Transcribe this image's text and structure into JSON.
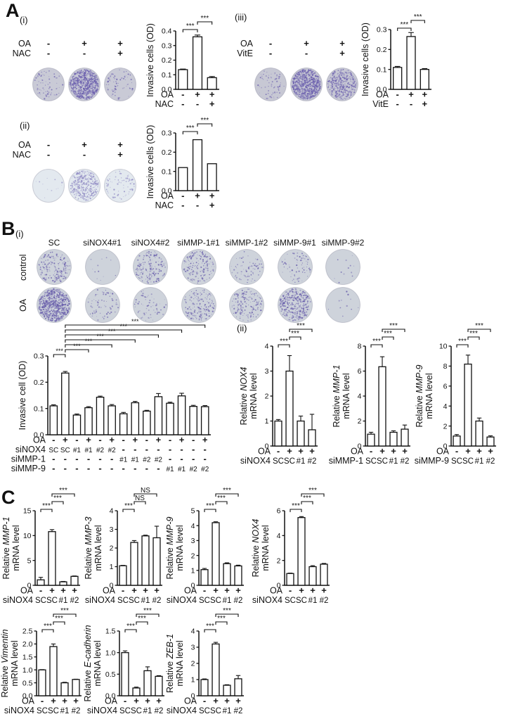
{
  "panels": {
    "A": {
      "label": "A",
      "subpanels": [
        {
          "id": "a_i",
          "tag": "(i)",
          "cond_rows": [
            {
              "label": "OA",
              "signs": [
                "-",
                "+",
                "+"
              ]
            },
            {
              "label": "NAC",
              "signs": [
                "-",
                "-",
                "+"
              ]
            }
          ],
          "well_base": "#c9cad6",
          "well_dot": "#6b5fae",
          "wells": [
            {
              "density": 1
            },
            {
              "density": 4
            },
            {
              "density": 1
            }
          ]
        },
        {
          "id": "a_ii",
          "tag": "(ii)",
          "cond_rows": [
            {
              "label": "OA",
              "signs": [
                "-",
                "+",
                "+"
              ]
            },
            {
              "label": "NAC",
              "signs": [
                "-",
                "-",
                "+"
              ]
            }
          ],
          "well_base": "#e3e9ef",
          "well_dot": "#8d87c2",
          "wells": [
            {
              "density": 0
            },
            {
              "density": 3
            },
            {
              "density": 1
            }
          ]
        },
        {
          "id": "a_iii",
          "tag": "(iii)",
          "cond_rows": [
            {
              "label": "OA",
              "signs": [
                "-",
                "+",
                "+"
              ]
            },
            {
              "label": "VitE",
              "signs": [
                "-",
                "-",
                "+"
              ]
            }
          ],
          "well_base": "#c7c8d4",
          "well_dot": "#6b5fae",
          "wells": [
            {
              "density": 1
            },
            {
              "density": 4
            },
            {
              "density": 3
            }
          ]
        }
      ]
    },
    "B": {
      "label": "B",
      "i_tag": "(i)",
      "ii_tag": "(ii)",
      "wells_grid": {
        "col_headers": [
          "SC",
          "siNOX4#1",
          "siNOX4#2",
          "siMMP-1#1",
          "siMMP-1#2",
          "siMMP-9#1",
          "siMMP-9#2"
        ],
        "row_labels": [
          "control",
          "OA"
        ],
        "well_base": "#ced3db",
        "well_dot": "#675caa",
        "rows": [
          [
            2,
            0,
            2,
            2,
            1,
            1,
            0
          ],
          [
            4,
            1,
            1,
            2,
            2,
            3,
            0
          ]
        ]
      }
    },
    "C": {
      "label": "C"
    }
  },
  "chart_data": [
    {
      "id": "a_i",
      "type": "bar",
      "ylabel": {
        "text": "Invasive cells (OD)"
      },
      "ylim": [
        0,
        0.4
      ],
      "ticks": [
        "0.0",
        "0.1",
        "0.2",
        "0.3",
        "0.4"
      ],
      "values": [
        0.135,
        0.36,
        0.08
      ],
      "errors": [
        0.004,
        0.012,
        0.008
      ],
      "xrows": [
        {
          "label": "OA",
          "values": [
            "-",
            "+",
            "+"
          ]
        },
        {
          "label": "NAC",
          "values": [
            "-",
            "-",
            "+"
          ]
        }
      ],
      "sig": [
        {
          "a": 0,
          "b": 1,
          "text": "***"
        },
        {
          "a": 1,
          "b": 2,
          "text": "***"
        }
      ]
    },
    {
      "id": "a_ii",
      "type": "bar",
      "ylabel": {
        "text": "Invasive cells (OD)"
      },
      "ylim": [
        0,
        0.3
      ],
      "ticks": [
        "0.0",
        "0.1",
        "0.2",
        "0.3"
      ],
      "values": [
        0.12,
        0.265,
        0.14
      ],
      "errors": [
        0,
        0,
        0
      ],
      "xrows": [
        {
          "label": "OA",
          "values": [
            "-",
            "+",
            "+"
          ]
        },
        {
          "label": "NAC",
          "values": [
            "-",
            "-",
            "+"
          ]
        }
      ],
      "sig": [
        {
          "a": 0,
          "b": 1,
          "text": "***"
        },
        {
          "a": 1,
          "b": 2,
          "text": "***"
        }
      ]
    },
    {
      "id": "a_iii",
      "type": "bar",
      "ylabel": {
        "text": "Invasive cells (OD)"
      },
      "ylim": [
        0,
        0.3
      ],
      "ticks": [
        "0.0",
        "0.1",
        "0.2",
        "0.3"
      ],
      "values": [
        0.11,
        0.265,
        0.1
      ],
      "errors": [
        0.005,
        0.02,
        0.004
      ],
      "xrows": [
        {
          "label": "OA",
          "values": [
            "-",
            "+",
            "+"
          ]
        },
        {
          "label": "VitE",
          "values": [
            "-",
            "-",
            "+"
          ]
        }
      ],
      "sig": [
        {
          "a": 0,
          "b": 1,
          "text": "***"
        },
        {
          "a": 1,
          "b": 2,
          "text": "***"
        }
      ]
    },
    {
      "id": "b_inv",
      "type": "bar",
      "ylabel": {
        "text": "Invasive cell (OD)"
      },
      "ylim": [
        0,
        0.3
      ],
      "ticks": [
        "0.0",
        "0.1",
        "0.2",
        "0.3"
      ],
      "values": [
        0.11,
        0.235,
        0.075,
        0.103,
        0.143,
        0.11,
        0.08,
        0.122,
        0.09,
        0.145,
        0.12,
        0.148,
        0.108,
        0.107
      ],
      "errors": [
        0.004,
        0.006,
        0.004,
        0.004,
        0.004,
        0.005,
        0.005,
        0.005,
        0.003,
        0.012,
        0.004,
        0.01,
        0.004,
        0.004
      ],
      "xrows": [
        {
          "label": "OA",
          "values": [
            "-",
            "+",
            "-",
            "+",
            "-",
            "+",
            "-",
            "+",
            "-",
            "+",
            "-",
            "+",
            "-",
            "+"
          ]
        },
        {
          "label": "siNOX4",
          "values": [
            "SC",
            "SC",
            "#1",
            "#1",
            "#2",
            "#2",
            "-",
            "-",
            "-",
            "-",
            "-",
            "-",
            "-",
            "-"
          ]
        },
        {
          "label": "siMMP-1",
          "values": [
            "-",
            "-",
            "-",
            "-",
            "-",
            "-",
            "#1",
            "#1",
            "#2",
            "#2",
            "-",
            "-",
            "-",
            "-"
          ]
        },
        {
          "label": "siMMP-9",
          "values": [
            "-",
            "-",
            "-",
            "-",
            "-",
            "-",
            "-",
            "-",
            "-",
            "-",
            "#1",
            "#1",
            "#2",
            "#2"
          ]
        }
      ],
      "sig": [
        {
          "a": 0,
          "b": 1,
          "text": "***"
        },
        {
          "a": 1,
          "b": 3,
          "text": "***"
        },
        {
          "a": 1,
          "b": 5,
          "text": "***"
        },
        {
          "a": 1,
          "b": 7,
          "text": "***"
        },
        {
          "a": 1,
          "b": 9,
          "text": "***"
        },
        {
          "a": 1,
          "b": 11,
          "text": "***"
        },
        {
          "a": 1,
          "b": 13,
          "text": "***"
        }
      ]
    },
    {
      "id": "b_nox4",
      "type": "bar",
      "ylabel": {
        "prefix": "Relative ",
        "gene": "NOX4",
        "line2": "mRNA level"
      },
      "ylim": [
        0,
        4
      ],
      "ticks": [
        "0",
        "1",
        "2",
        "3",
        "4"
      ],
      "values": [
        1.0,
        3.0,
        1.0,
        0.65
      ],
      "errors": [
        0.06,
        0.62,
        0.2,
        0.62
      ],
      "xrows": [
        {
          "label": "OA",
          "values": [
            "-",
            "+",
            "+",
            "+"
          ]
        },
        {
          "label": "siNOX4",
          "values": [
            "SC",
            "SC",
            "#1",
            "#2"
          ]
        }
      ],
      "sig": [
        {
          "a": 0,
          "b": 1,
          "text": "***"
        },
        {
          "a": 1,
          "b": 2,
          "text": "***"
        },
        {
          "a": 1,
          "b": 3,
          "text": "***"
        }
      ]
    },
    {
      "id": "b_mmp1",
      "type": "bar",
      "ylabel": {
        "prefix": "Relative ",
        "gene": "MMP-1",
        "line2": "mRNA level"
      },
      "ylim": [
        0,
        8
      ],
      "ticks": [
        "0",
        "2",
        "4",
        "6",
        "8"
      ],
      "values": [
        0.95,
        6.35,
        1.1,
        1.35
      ],
      "errors": [
        0.15,
        0.8,
        0.12,
        0.33
      ],
      "xrows": [
        {
          "label": "OA",
          "values": [
            "-",
            "+",
            "+",
            "+"
          ]
        },
        {
          "label": "siMMP-1",
          "values": [
            "SC",
            "SC",
            "#1",
            "#2"
          ]
        }
      ],
      "sig": [
        {
          "a": 0,
          "b": 1,
          "text": "***"
        },
        {
          "a": 1,
          "b": 2,
          "text": "***"
        },
        {
          "a": 1,
          "b": 3,
          "text": "***"
        }
      ]
    },
    {
      "id": "b_mmp9",
      "type": "bar",
      "ylabel": {
        "prefix": "Relative ",
        "gene": "MMP-9",
        "line2": "mRNA level"
      },
      "ylim": [
        0,
        10
      ],
      "ticks": [
        "0",
        "2",
        "4",
        "6",
        "8",
        "10"
      ],
      "values": [
        1.0,
        8.2,
        2.5,
        0.9
      ],
      "errors": [
        0.15,
        0.9,
        0.3,
        0.12
      ],
      "xrows": [
        {
          "label": "OA",
          "values": [
            "-",
            "+",
            "+",
            "+"
          ]
        },
        {
          "label": "siMMP-9",
          "values": [
            "SC",
            "SC",
            "#1",
            "#2"
          ]
        }
      ],
      "sig": [
        {
          "a": 0,
          "b": 1,
          "text": "***"
        },
        {
          "a": 1,
          "b": 2,
          "text": "***"
        },
        {
          "a": 1,
          "b": 3,
          "text": "***"
        }
      ]
    },
    {
      "id": "c_mmp1",
      "type": "bar",
      "ylabel": {
        "prefix": "Relative ",
        "gene": "MMP-1",
        "line2": "mRNA level"
      },
      "ylim": [
        0,
        15
      ],
      "ticks": [
        "0",
        "5",
        "10",
        "15"
      ],
      "values": [
        1.1,
        10.8,
        0.7,
        1.8
      ],
      "errors": [
        0.5,
        0.4,
        0.08,
        0.08
      ],
      "xrows": [
        {
          "label": "OA",
          "values": [
            "-",
            "+",
            "+",
            "+"
          ]
        },
        {
          "label": "siNOX4",
          "values": [
            "SC",
            "SC",
            "#1",
            "#2"
          ]
        }
      ],
      "sig": [
        {
          "a": 0,
          "b": 1,
          "text": "***"
        },
        {
          "a": 1,
          "b": 2,
          "text": "***"
        },
        {
          "a": 1,
          "b": 3,
          "text": "***"
        }
      ]
    },
    {
      "id": "c_mmp3",
      "type": "bar",
      "ylabel": {
        "prefix": "Relative ",
        "gene": "MMP-3",
        "line2": "mRNA level"
      },
      "ylim": [
        0,
        4
      ],
      "ticks": [
        "0",
        "1",
        "2",
        "3",
        "4"
      ],
      "values": [
        1.05,
        2.3,
        2.65,
        2.55
      ],
      "errors": [
        0.02,
        0.1,
        0.04,
        0.62
      ],
      "xrows": [
        {
          "label": "OA",
          "values": [
            "-",
            "+",
            "+",
            "+"
          ]
        },
        {
          "label": "siNOX4",
          "values": [
            "SC",
            "SC",
            "#1",
            "#2"
          ]
        }
      ],
      "sig": [
        {
          "a": 0,
          "b": 1,
          "text": "***"
        },
        {
          "a": 1,
          "b": 2,
          "text": "NS"
        },
        {
          "a": 1,
          "b": 3,
          "text": "NS"
        }
      ]
    },
    {
      "id": "c_mmp9",
      "type": "bar",
      "ylabel": {
        "prefix": "Relative ",
        "gene": "MMP-9",
        "line2": "mRNA level"
      },
      "ylim": [
        0,
        5
      ],
      "ticks": [
        "0",
        "1",
        "2",
        "3",
        "4",
        "5"
      ],
      "values": [
        1.05,
        4.2,
        1.45,
        1.3
      ],
      "errors": [
        0.08,
        0.06,
        0.06,
        0.05
      ],
      "xrows": [
        {
          "label": "OA",
          "values": [
            "-",
            "+",
            "+",
            "+"
          ]
        },
        {
          "label": "siNOX4",
          "values": [
            "SC",
            "SC",
            "#1",
            "#2"
          ]
        }
      ],
      "sig": [
        {
          "a": 0,
          "b": 1,
          "text": "***"
        },
        {
          "a": 1,
          "b": 2,
          "text": "***"
        },
        {
          "a": 1,
          "b": 3,
          "text": "***"
        }
      ]
    },
    {
      "id": "c_nox4",
      "type": "bar",
      "ylabel": {
        "prefix": "Relative ",
        "gene": "NOX4",
        "line2": "mRNA level"
      },
      "ylim": [
        0,
        6
      ],
      "ticks": [
        "0",
        "2",
        "4",
        "6"
      ],
      "values": [
        0.95,
        5.45,
        1.5,
        1.7
      ],
      "errors": [
        0.03,
        0.08,
        0.08,
        0.06
      ],
      "xrows": [
        {
          "label": "OA",
          "values": [
            "-",
            "+",
            "+",
            "+"
          ]
        },
        {
          "label": "siNOX4",
          "values": [
            "SC",
            "SC",
            "#1",
            "#2"
          ]
        }
      ],
      "sig": [
        {
          "a": 0,
          "b": 1,
          "text": "***"
        },
        {
          "a": 1,
          "b": 2,
          "text": "***"
        },
        {
          "a": 1,
          "b": 3,
          "text": "***"
        }
      ]
    },
    {
      "id": "c_vim",
      "type": "bar",
      "ylabel": {
        "prefix": "Relative ",
        "gene": "Vimentin",
        "line2": "mRNA level"
      },
      "ylim": [
        0,
        2.5
      ],
      "ticks": [
        "0.0",
        "0.5",
        "1.0",
        "1.5",
        "2.0",
        "2.5"
      ],
      "values": [
        1.0,
        1.9,
        0.5,
        0.63
      ],
      "errors": [
        0.01,
        0.1,
        0.02,
        0.01
      ],
      "xrows": [
        {
          "label": "OA",
          "values": [
            "-",
            "+",
            "+",
            "+"
          ]
        },
        {
          "label": "siNOX4",
          "values": [
            "SC",
            "SC",
            "#1",
            "#2"
          ]
        }
      ],
      "sig": [
        {
          "a": 0,
          "b": 1,
          "text": "***"
        },
        {
          "a": 1,
          "b": 2,
          "text": "***"
        },
        {
          "a": 1,
          "b": 3,
          "text": "***"
        }
      ]
    },
    {
      "id": "c_ecad",
      "type": "bar",
      "ylabel": {
        "prefix": "Relative ",
        "gene": "E-cadherin",
        "line2": "mRNA level"
      },
      "ylim": [
        0,
        1.5
      ],
      "ticks": [
        "0.0",
        "0.5",
        "1.0",
        "1.5"
      ],
      "values": [
        1.0,
        0.18,
        0.58,
        0.45
      ],
      "errors": [
        0.04,
        0.02,
        0.09,
        0.015
      ],
      "xrows": [
        {
          "label": "OA",
          "values": [
            "-",
            "+",
            "+",
            "+"
          ]
        },
        {
          "label": "siNOX4",
          "values": [
            "SC",
            "SC",
            "#1",
            "#2"
          ]
        }
      ],
      "sig": [
        {
          "a": 0,
          "b": 1,
          "text": "***"
        },
        {
          "a": 1,
          "b": 2,
          "text": "***"
        },
        {
          "a": 1,
          "b": 3,
          "text": "***"
        }
      ]
    },
    {
      "id": "c_zeb",
      "type": "bar",
      "ylabel": {
        "prefix": "Relative ",
        "gene": "ZEB-1",
        "line2": "mRNA level"
      },
      "ylim": [
        0,
        4
      ],
      "ticks": [
        "0",
        "1",
        "2",
        "3",
        "4"
      ],
      "values": [
        1.0,
        3.2,
        0.65,
        1.05
      ],
      "errors": [
        0.04,
        0.1,
        0.03,
        0.2
      ],
      "xrows": [
        {
          "label": "OA",
          "values": [
            "-",
            "+",
            "+",
            "+"
          ]
        },
        {
          "label": "siNOX4",
          "values": [
            "SC",
            "SC",
            "#1",
            "#2"
          ]
        }
      ],
      "sig": [
        {
          "a": 0,
          "b": 1,
          "text": "***"
        },
        {
          "a": 1,
          "b": 2,
          "text": "***"
        },
        {
          "a": 1,
          "b": 3,
          "text": "***"
        }
      ]
    }
  ]
}
